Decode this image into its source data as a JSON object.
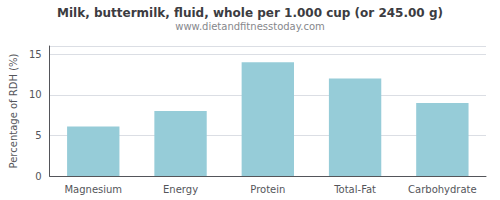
{
  "chart_data": {
    "type": "bar",
    "title": "Milk, buttermilk, fluid, whole per 1.000 cup (or 245.00 g)",
    "subtitle": "www.dietandfitnesstoday.com",
    "ylabel": "Percentage of RDH (%)",
    "categories": [
      "Magnesium",
      "Energy",
      "Protein",
      "Total-Fat",
      "Carbohydrate"
    ],
    "values": [
      6.1,
      8.0,
      14.0,
      12.0,
      9.0
    ],
    "color": "#96ccd8",
    "ylim": [
      0,
      16
    ],
    "yticks": [
      0,
      5,
      10,
      15
    ],
    "grid": true
  }
}
